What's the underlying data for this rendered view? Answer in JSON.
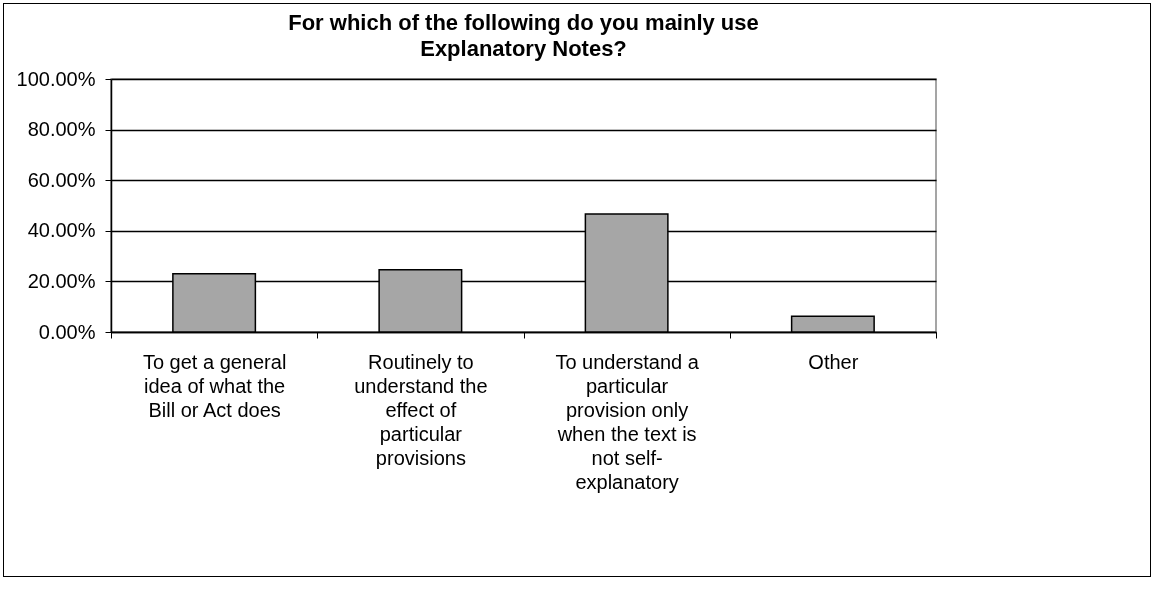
{
  "chart_data": {
    "type": "bar",
    "title": "For which of the following do you mainly use Explanatory Notes?",
    "categories": [
      "To get a general idea of what the Bill or Act does",
      "Routinely to understand the effect of particular provisions",
      "To understand a particular provision only when the text is not self-explanatory",
      "Other"
    ],
    "values": [
      23.0,
      24.6,
      46.6,
      6.2
    ],
    "color": "#a6a6a6",
    "ylim": [
      0,
      100
    ],
    "yticks": [
      {
        "value": 0,
        "label": "0.00%"
      },
      {
        "value": 20,
        "label": "20.00%"
      },
      {
        "value": 40,
        "label": "40.00%"
      },
      {
        "value": 60,
        "label": "60.00%"
      },
      {
        "value": 80,
        "label": "80.00%"
      },
      {
        "value": 100,
        "label": "100.00%"
      }
    ],
    "grid": "y"
  }
}
